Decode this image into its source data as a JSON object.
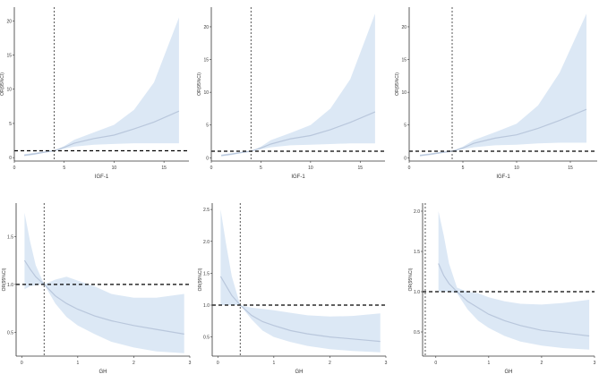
{
  "figure": {
    "background": "#ffffff",
    "band_color": "#dce8f5",
    "line_color": "#b9c7dc",
    "axis_color": "#333333",
    "text_color": "#333333"
  },
  "chart_data": [
    {
      "type": "line",
      "xlabel": "IGF-1",
      "ylabel": "OR(95%CI)",
      "xlim": [
        0,
        17.5
      ],
      "ylim": [
        -0.5,
        22
      ],
      "xticks": [
        0,
        5,
        10,
        15
      ],
      "yticks": [
        0,
        5,
        10,
        15,
        20
      ],
      "ref_y": 1,
      "ref_x": 4,
      "series": [
        {
          "x": [
            1,
            2,
            3,
            4,
            5,
            6,
            8,
            10,
            12,
            14,
            16.5
          ],
          "y": [
            0.35,
            0.55,
            0.8,
            1.0,
            1.5,
            2.1,
            2.8,
            3.3,
            4.2,
            5.2,
            6.8
          ],
          "lower": [
            0.2,
            0.4,
            0.7,
            1.0,
            1.3,
            1.6,
            1.9,
            2.0,
            2.1,
            2.1,
            2.1
          ],
          "upper": [
            0.5,
            0.7,
            0.9,
            1.0,
            1.7,
            2.6,
            3.7,
            4.8,
            7.0,
            11.0,
            20.5
          ]
        }
      ]
    },
    {
      "type": "line",
      "xlabel": "IGF-1",
      "ylabel": "OR(95%CI)",
      "xlim": [
        0,
        17.5
      ],
      "ylim": [
        -0.5,
        23
      ],
      "xticks": [
        0,
        5,
        10,
        15
      ],
      "yticks": [
        0,
        5,
        10,
        15,
        20
      ],
      "ref_y": 1,
      "ref_x": 4,
      "series": [
        {
          "x": [
            1,
            2,
            3,
            4,
            5,
            6,
            8,
            10,
            12,
            14,
            16.5
          ],
          "y": [
            0.35,
            0.55,
            0.8,
            1.0,
            1.5,
            2.1,
            2.9,
            3.4,
            4.3,
            5.4,
            7.0
          ],
          "lower": [
            0.2,
            0.4,
            0.7,
            1.0,
            1.3,
            1.6,
            1.9,
            2.0,
            2.1,
            2.2,
            2.2
          ],
          "upper": [
            0.5,
            0.7,
            0.9,
            1.0,
            1.7,
            2.7,
            3.8,
            5.0,
            7.5,
            12.0,
            22.0
          ]
        }
      ]
    },
    {
      "type": "line",
      "xlabel": "IGF-1",
      "ylabel": "OR(95%CI)",
      "xlim": [
        0,
        17.5
      ],
      "ylim": [
        -0.5,
        23
      ],
      "xticks": [
        0,
        5,
        10,
        15
      ],
      "yticks": [
        0,
        5,
        10,
        15,
        20
      ],
      "ref_y": 1,
      "ref_x": 4,
      "series": [
        {
          "x": [
            1,
            2,
            3,
            4,
            5,
            6,
            8,
            10,
            12,
            14,
            16.5
          ],
          "y": [
            0.35,
            0.55,
            0.8,
            1.0,
            1.5,
            2.2,
            3.0,
            3.5,
            4.5,
            5.7,
            7.4
          ],
          "lower": [
            0.2,
            0.4,
            0.7,
            1.0,
            1.3,
            1.6,
            1.9,
            2.0,
            2.2,
            2.3,
            2.3
          ],
          "upper": [
            0.5,
            0.7,
            0.9,
            1.0,
            1.7,
            2.7,
            3.9,
            5.2,
            8.0,
            13.0,
            22.0
          ]
        }
      ]
    },
    {
      "type": "line",
      "xlabel": "GH",
      "ylabel": "OR(95%CI)",
      "xlim": [
        -0.1,
        3.0
      ],
      "ylim": [
        0.25,
        1.85
      ],
      "xticks": [
        0,
        1,
        2,
        3
      ],
      "yticks": [
        0.5,
        1.0,
        1.5
      ],
      "ref_y": 1,
      "ref_x": 0.4,
      "series": [
        {
          "x": [
            0.05,
            0.15,
            0.25,
            0.4,
            0.6,
            0.8,
            1.0,
            1.3,
            1.6,
            2.0,
            2.4,
            2.9
          ],
          "y": [
            1.25,
            1.16,
            1.08,
            1.0,
            0.88,
            0.8,
            0.74,
            0.67,
            0.62,
            0.57,
            0.53,
            0.48
          ],
          "lower": [
            0.95,
            0.98,
            0.99,
            1.0,
            0.8,
            0.66,
            0.57,
            0.48,
            0.4,
            0.34,
            0.3,
            0.28
          ],
          "upper": [
            1.75,
            1.45,
            1.2,
            1.0,
            1.05,
            1.08,
            1.04,
            0.98,
            0.9,
            0.86,
            0.86,
            0.9
          ]
        }
      ]
    },
    {
      "type": "line",
      "xlabel": "GH",
      "ylabel": "OR(95%CI)",
      "xlim": [
        -0.1,
        3.0
      ],
      "ylim": [
        0.2,
        2.6
      ],
      "xticks": [
        0,
        1,
        2,
        3
      ],
      "yticks": [
        0.5,
        1.0,
        1.5,
        2.0,
        2.5
      ],
      "ref_y": 1,
      "ref_x": 0.4,
      "series": [
        {
          "x": [
            0.05,
            0.15,
            0.25,
            0.4,
            0.6,
            0.8,
            1.0,
            1.3,
            1.6,
            2.0,
            2.4,
            2.9
          ],
          "y": [
            1.45,
            1.3,
            1.15,
            1.0,
            0.84,
            0.74,
            0.68,
            0.6,
            0.55,
            0.5,
            0.47,
            0.43
          ],
          "lower": [
            1.0,
            1.0,
            1.0,
            1.0,
            0.78,
            0.6,
            0.5,
            0.42,
            0.36,
            0.31,
            0.28,
            0.26
          ],
          "upper": [
            2.5,
            1.95,
            1.45,
            1.0,
            0.96,
            0.94,
            0.92,
            0.88,
            0.84,
            0.82,
            0.83,
            0.87
          ]
        }
      ]
    },
    {
      "type": "line",
      "xlabel": "GH",
      "ylabel": "OR(95%CI)",
      "xlim": [
        -0.25,
        3.0
      ],
      "ylim": [
        0.2,
        2.1
      ],
      "xticks": [
        0,
        1,
        2,
        3
      ],
      "yticks": [
        0.5,
        1.0,
        1.5,
        2.0
      ],
      "ref_y": 1,
      "ref_x": -0.2,
      "series": [
        {
          "x": [
            0.05,
            0.15,
            0.25,
            0.4,
            0.6,
            0.8,
            1.0,
            1.3,
            1.6,
            2.0,
            2.4,
            2.9
          ],
          "y": [
            1.35,
            1.2,
            1.1,
            1.0,
            0.88,
            0.8,
            0.72,
            0.64,
            0.58,
            0.52,
            0.49,
            0.45
          ],
          "lower": [
            1.0,
            1.0,
            1.0,
            0.98,
            0.78,
            0.64,
            0.55,
            0.45,
            0.38,
            0.33,
            0.3,
            0.28
          ],
          "upper": [
            2.0,
            1.7,
            1.35,
            1.05,
            1.0,
            0.98,
            0.93,
            0.88,
            0.85,
            0.84,
            0.86,
            0.9
          ]
        }
      ]
    }
  ]
}
